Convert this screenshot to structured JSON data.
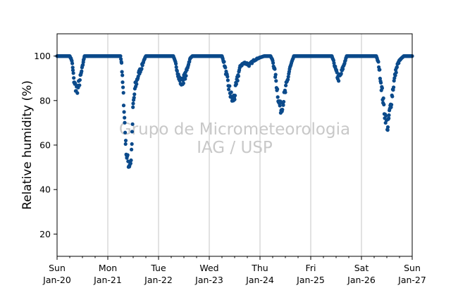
{
  "chart_data": {
    "type": "scatter",
    "ylabel": "Relative humidity (%)",
    "ylim": [
      10,
      110
    ],
    "yticks": [
      20,
      40,
      60,
      80,
      100
    ],
    "xlim": [
      "2019-01-20",
      "2019-01-27"
    ],
    "xticks": [
      {
        "day": "Sun",
        "date": "Jan-20"
      },
      {
        "day": "Mon",
        "date": "Jan-21"
      },
      {
        "day": "Tue",
        "date": "Jan-22"
      },
      {
        "day": "Wed",
        "date": "Jan-23"
      },
      {
        "day": "Thu",
        "date": "Jan-24"
      },
      {
        "day": "Fri",
        "date": "Jan-25"
      },
      {
        "day": "Sat",
        "date": "Jan-26"
      },
      {
        "day": "Sun",
        "date": "Jan-27"
      }
    ],
    "grid": "vertical",
    "marker_color": "#0b4a8b",
    "watermark": [
      "Grupo de Micrometeorologia",
      "IAG / USP"
    ],
    "series": [
      {
        "points": [
          [
            "2019-01-20 00:00",
            100
          ],
          [
            "2019-01-20 06:00",
            100
          ],
          [
            "2019-01-20 07:00",
            98
          ],
          [
            "2019-01-20 07:30",
            94
          ],
          [
            "2019-01-20 08:00",
            88
          ],
          [
            "2019-01-20 09:00",
            85
          ],
          [
            "2019-01-20 10:00",
            86
          ],
          [
            "2019-01-20 11:00",
            90
          ],
          [
            "2019-01-20 12:00",
            95
          ],
          [
            "2019-01-20 12:30",
            98
          ],
          [
            "2019-01-20 13:00",
            100
          ],
          [
            "2019-01-21 00:00",
            100
          ],
          [
            "2019-01-21 06:00",
            100
          ],
          [
            "2019-01-21 06:30",
            97
          ],
          [
            "2019-01-21 07:00",
            88
          ],
          [
            "2019-01-21 07:30",
            80
          ],
          [
            "2019-01-21 08:00",
            70
          ],
          [
            "2019-01-21 08:30",
            60
          ],
          [
            "2019-01-21 09:00",
            55
          ],
          [
            "2019-01-21 10:00",
            51
          ],
          [
            "2019-01-21 11:00",
            53
          ],
          [
            "2019-01-21 11:30",
            64
          ],
          [
            "2019-01-21 12:00",
            78
          ],
          [
            "2019-01-21 13:00",
            86
          ],
          [
            "2019-01-21 14:00",
            90
          ],
          [
            "2019-01-21 15:00",
            93
          ],
          [
            "2019-01-21 16:00",
            95
          ],
          [
            "2019-01-21 17:00",
            98
          ],
          [
            "2019-01-21 18:00",
            100
          ],
          [
            "2019-01-22 00:00",
            100
          ],
          [
            "2019-01-22 07:00",
            100
          ],
          [
            "2019-01-22 08:00",
            97
          ],
          [
            "2019-01-22 09:00",
            93
          ],
          [
            "2019-01-22 10:00",
            89
          ],
          [
            "2019-01-22 11:00",
            88
          ],
          [
            "2019-01-22 12:00",
            90
          ],
          [
            "2019-01-22 13:00",
            92
          ],
          [
            "2019-01-22 14:00",
            96
          ],
          [
            "2019-01-22 15:00",
            99
          ],
          [
            "2019-01-22 16:00",
            100
          ],
          [
            "2019-01-23 00:00",
            100
          ],
          [
            "2019-01-23 06:00",
            100
          ],
          [
            "2019-01-23 07:00",
            97
          ],
          [
            "2019-01-23 08:00",
            92
          ],
          [
            "2019-01-23 09:00",
            87
          ],
          [
            "2019-01-23 10:00",
            83
          ],
          [
            "2019-01-23 11:00",
            80
          ],
          [
            "2019-01-23 12:00",
            82
          ],
          [
            "2019-01-23 13:00",
            88
          ],
          [
            "2019-01-23 14:00",
            93
          ],
          [
            "2019-01-23 15:00",
            96
          ],
          [
            "2019-01-23 17:00",
            97
          ],
          [
            "2019-01-23 19:00",
            96
          ],
          [
            "2019-01-23 21:00",
            98
          ],
          [
            "2019-01-23 23:00",
            99
          ],
          [
            "2019-01-24 02:00",
            100
          ],
          [
            "2019-01-24 05:00",
            100
          ],
          [
            "2019-01-24 06:00",
            98
          ],
          [
            "2019-01-24 07:00",
            93
          ],
          [
            "2019-01-24 08:00",
            86
          ],
          [
            "2019-01-24 09:00",
            79
          ],
          [
            "2019-01-24 10:00",
            76
          ],
          [
            "2019-01-24 11:00",
            80
          ],
          [
            "2019-01-24 12:00",
            84
          ],
          [
            "2019-01-24 13:00",
            89
          ],
          [
            "2019-01-24 14:00",
            94
          ],
          [
            "2019-01-24 15:00",
            97
          ],
          [
            "2019-01-24 16:00",
            100
          ],
          [
            "2019-01-25 00:00",
            100
          ],
          [
            "2019-01-25 10:00",
            100
          ],
          [
            "2019-01-25 11:00",
            97
          ],
          [
            "2019-01-25 12:00",
            93
          ],
          [
            "2019-01-25 13:00",
            90
          ],
          [
            "2019-01-25 14:00",
            91
          ],
          [
            "2019-01-25 15:00",
            94
          ],
          [
            "2019-01-25 16:00",
            97
          ],
          [
            "2019-01-25 17:00",
            100
          ],
          [
            "2019-01-26 00:00",
            100
          ],
          [
            "2019-01-26 07:00",
            100
          ],
          [
            "2019-01-26 08:00",
            97
          ],
          [
            "2019-01-26 09:00",
            90
          ],
          [
            "2019-01-26 10:00",
            82
          ],
          [
            "2019-01-26 11:00",
            74
          ],
          [
            "2019-01-26 12:00",
            70
          ],
          [
            "2019-01-26 12:30",
            67
          ],
          [
            "2019-01-26 13:00",
            73
          ],
          [
            "2019-01-26 14:00",
            79
          ],
          [
            "2019-01-26 15:00",
            86
          ],
          [
            "2019-01-26 16:00",
            92
          ],
          [
            "2019-01-26 17:00",
            96
          ],
          [
            "2019-01-26 18:00",
            98
          ],
          [
            "2019-01-26 20:00",
            100
          ],
          [
            "2019-01-27 00:00",
            100
          ]
        ]
      }
    ]
  }
}
